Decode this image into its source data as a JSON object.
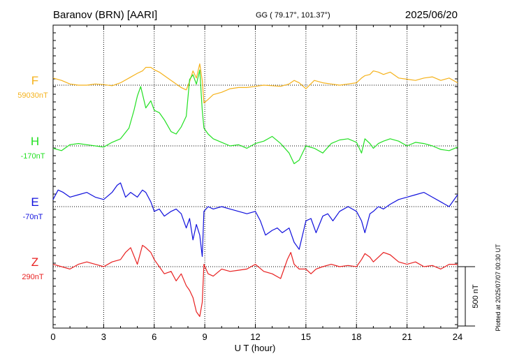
{
  "header": {
    "station": "Baranov (BRN)  [AARI]",
    "coords": "GG ( 79.17°, 101.37°)",
    "date": "2025/06/20"
  },
  "plotted_at": "Plotted at 2025/07/07 00:30 UT",
  "scale_label": "500 nT",
  "chart_data": {
    "type": "line",
    "xlabel": "U T (hour)",
    "xlim": [
      0,
      24
    ],
    "x_ticks": [
      "0",
      "3",
      "6",
      "9",
      "12",
      "15",
      "18",
      "21",
      "24"
    ],
    "scale_bar_nT": 500,
    "series": [
      {
        "name": "F",
        "baseline_label": "59030nT",
        "color": "#f5b21b",
        "x": [
          0,
          0.5,
          1,
          1.5,
          2,
          2.5,
          3,
          3.5,
          4,
          4.5,
          5,
          5.3,
          5.5,
          5.8,
          6,
          6.3,
          6.6,
          7,
          7.3,
          7.6,
          7.9,
          8.1,
          8.3,
          8.5,
          8.7,
          8.85,
          8.95,
          9.2,
          9.5,
          10,
          10.5,
          11,
          11.5,
          12,
          12.5,
          13,
          13.5,
          14,
          14.3,
          14.6,
          15,
          15.5,
          16,
          16.5,
          17,
          17.5,
          18,
          18.3,
          18.5,
          18.8,
          19,
          19.3,
          19.6,
          20,
          20.5,
          21,
          21.5,
          22,
          22.5,
          23,
          23.5,
          24
        ],
        "y": [
          60,
          40,
          10,
          0,
          0,
          10,
          5,
          -5,
          20,
          60,
          100,
          120,
          150,
          150,
          130,
          110,
          80,
          40,
          10,
          -20,
          -40,
          30,
          120,
          60,
          180,
          40,
          -150,
          -120,
          -80,
          -60,
          -30,
          -20,
          -20,
          -10,
          0,
          -5,
          -10,
          10,
          40,
          20,
          -30,
          40,
          20,
          10,
          0,
          10,
          20,
          60,
          80,
          90,
          120,
          110,
          90,
          110,
          60,
          50,
          40,
          60,
          70,
          40,
          60,
          20
        ]
      },
      {
        "name": "H",
        "baseline_label": "-170nT",
        "color": "#22e022",
        "x": [
          0,
          0.5,
          1,
          1.5,
          2,
          2.5,
          3,
          3.5,
          4,
          4.5,
          4.8,
          5,
          5.2,
          5.5,
          5.8,
          6,
          6.3,
          6.6,
          7,
          7.3,
          7.6,
          7.9,
          8.1,
          8.3,
          8.5,
          8.7,
          8.85,
          8.95,
          9.2,
          9.5,
          10,
          10.5,
          11,
          11.5,
          12,
          12.5,
          13,
          13.5,
          14,
          14.3,
          14.6,
          15,
          15.5,
          16,
          16.5,
          17,
          17.5,
          18,
          18.3,
          18.5,
          18.8,
          19,
          19.3,
          19.6,
          20,
          20.5,
          21,
          21.5,
          22,
          22.5,
          23,
          23.5,
          24
        ],
        "y": [
          -20,
          -40,
          10,
          20,
          10,
          0,
          -10,
          30,
          60,
          150,
          300,
          420,
          500,
          320,
          380,
          300,
          280,
          220,
          120,
          100,
          160,
          250,
          560,
          600,
          520,
          640,
          300,
          150,
          100,
          60,
          30,
          0,
          10,
          -20,
          20,
          40,
          80,
          20,
          -60,
          -150,
          -120,
          0,
          -20,
          -60,
          20,
          50,
          60,
          30,
          -60,
          60,
          20,
          -20,
          20,
          40,
          60,
          40,
          0,
          30,
          20,
          0,
          -30,
          -40,
          -10
        ]
      },
      {
        "name": "E",
        "baseline_label": "-70nT",
        "color": "#1010dd",
        "x": [
          0,
          0.3,
          0.6,
          1,
          1.5,
          2,
          2.5,
          3,
          3.5,
          3.8,
          4,
          4.3,
          4.6,
          5,
          5.3,
          5.5,
          5.8,
          6,
          6.3,
          6.6,
          7,
          7.3,
          7.6,
          7.9,
          8.1,
          8.3,
          8.5,
          8.7,
          8.85,
          8.95,
          9.2,
          9.5,
          10,
          10.5,
          11,
          11.5,
          12,
          12.3,
          12.6,
          13,
          13.3,
          13.6,
          14,
          14.3,
          14.6,
          15,
          15.3,
          15.6,
          16,
          16.3,
          16.6,
          17,
          17.5,
          18,
          18.3,
          18.5,
          18.8,
          19,
          19.3,
          19.6,
          20,
          20.5,
          21,
          21.5,
          22,
          22.5,
          23,
          23.5,
          24
        ],
        "y": [
          60,
          140,
          120,
          80,
          100,
          120,
          80,
          60,
          120,
          180,
          200,
          80,
          120,
          80,
          140,
          120,
          40,
          -40,
          -20,
          -80,
          -40,
          -20,
          -60,
          -180,
          -100,
          -280,
          -150,
          -240,
          -420,
          -40,
          0,
          -20,
          0,
          -20,
          -40,
          -60,
          -40,
          -120,
          -240,
          -200,
          -180,
          -220,
          -180,
          -300,
          -360,
          -120,
          -100,
          -220,
          -80,
          -60,
          -120,
          -40,
          0,
          -40,
          -120,
          -220,
          -60,
          -40,
          0,
          -20,
          20,
          60,
          80,
          100,
          120,
          80,
          40,
          0,
          100
        ]
      },
      {
        "name": "Z",
        "baseline_label": "290nT",
        "color": "#e82020",
        "x": [
          0,
          0.5,
          1,
          1.5,
          2,
          2.5,
          3,
          3.5,
          4,
          4.3,
          4.6,
          5,
          5.3,
          5.5,
          5.8,
          6,
          6.3,
          6.6,
          7,
          7.3,
          7.6,
          7.9,
          8.1,
          8.3,
          8.5,
          8.7,
          8.85,
          8.95,
          9.2,
          9.5,
          10,
          10.5,
          11,
          11.5,
          12,
          12.5,
          13,
          13.5,
          13.9,
          14.1,
          14.3,
          14.6,
          15,
          15.3,
          15.6,
          16,
          16.5,
          17,
          17.5,
          18,
          18.3,
          18.5,
          18.8,
          19,
          19.3,
          19.6,
          20,
          20.5,
          21,
          21.5,
          22,
          22.5,
          23,
          23.5,
          24
        ],
        "y": [
          20,
          0,
          -20,
          20,
          40,
          20,
          0,
          40,
          60,
          120,
          160,
          20,
          180,
          160,
          120,
          60,
          0,
          -60,
          -40,
          -120,
          -60,
          -160,
          -200,
          -260,
          -380,
          -420,
          -300,
          20,
          -60,
          -80,
          -20,
          -40,
          -30,
          -20,
          20,
          -40,
          -60,
          -100,
          60,
          120,
          20,
          -20,
          -20,
          -60,
          -20,
          0,
          20,
          0,
          10,
          0,
          60,
          110,
          80,
          40,
          80,
          120,
          100,
          40,
          20,
          40,
          0,
          10,
          -20,
          20,
          20
        ]
      }
    ]
  }
}
